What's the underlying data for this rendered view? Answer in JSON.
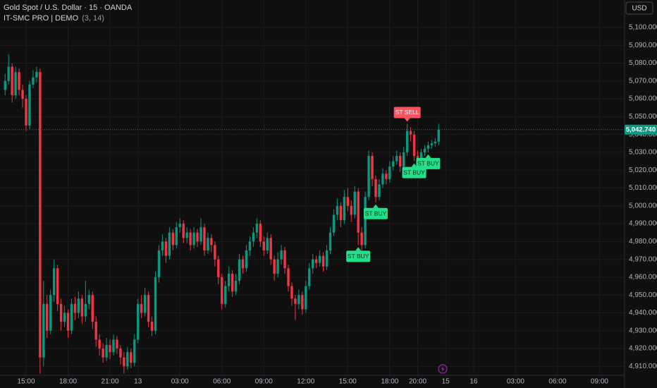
{
  "chart_data": {
    "type": "candlestick",
    "title": "Gold Spot / U.S. Dollar · 15 · OANDA",
    "subtitle": "IT-SMC PRO | DEMO",
    "subtitle_params": "(3, 14)",
    "currency": "USD",
    "up_color": "#089981",
    "down_color": "#f23645",
    "grid": true,
    "categories": [
      null,
      null,
      null,
      null,
      null,
      null,
      "15:00",
      null,
      null,
      null,
      null,
      null,
      null,
      null,
      null,
      null,
      null,
      null,
      "18:00",
      null,
      null,
      null,
      null,
      null,
      null,
      null,
      null,
      null,
      null,
      null,
      "21:00",
      null,
      null,
      null,
      null,
      null,
      null,
      null,
      "13",
      null,
      null,
      null,
      null,
      null,
      null,
      null,
      null,
      null,
      null,
      null,
      "03:00",
      null,
      null,
      null,
      null,
      null,
      null,
      null,
      null,
      null,
      null,
      null,
      "06:00",
      null,
      null,
      null,
      null,
      null,
      null,
      null,
      null,
      null,
      null,
      null,
      "09:00",
      null,
      null,
      null,
      null,
      null,
      null,
      null,
      null,
      null,
      null,
      null,
      "12:00",
      null,
      null,
      null,
      null,
      null,
      null,
      null,
      null,
      null,
      null,
      null,
      "15:00",
      null,
      null,
      null,
      null,
      null,
      null,
      null,
      null,
      null,
      null,
      null,
      "18:00",
      null,
      null,
      null,
      null,
      null,
      null,
      null,
      "20:00",
      null,
      null,
      null,
      null,
      null,
      null,
      null,
      "15",
      null,
      null,
      null,
      null,
      null,
      null,
      null,
      "16",
      null,
      null,
      null,
      null,
      null,
      null,
      null,
      null,
      null,
      null,
      null,
      "03:00",
      null,
      null,
      null,
      null,
      null,
      null,
      null,
      null,
      null,
      null,
      null,
      "06:00",
      null,
      null,
      null,
      null,
      null,
      null,
      null,
      null,
      null,
      null,
      null,
      "09:00",
      null,
      null,
      null,
      null,
      null
    ],
    "open": [
      5065,
      5070,
      5078,
      5062,
      5075,
      5065,
      5060,
      5045,
      5068,
      5072,
      5075,
      4915,
      4945,
      4930,
      4950,
      4965,
      4945,
      4935,
      4940,
      4930,
      4945,
      4940,
      4948,
      4938,
      4945,
      4950,
      4935,
      4925,
      4920,
      4915,
      4922,
      4918,
      4925,
      4920,
      4915,
      4910,
      4918,
      4912,
      4925,
      4945,
      4940,
      4950,
      4935,
      4930,
      4960,
      4975,
      4980,
      4972,
      4985,
      4978,
      4988,
      4990,
      4982,
      4985,
      4978,
      4985,
      4980,
      4988,
      4975,
      4982,
      4978,
      4970,
      4960,
      4945,
      4955,
      4962,
      4952,
      4958,
      4970,
      4965,
      4975,
      4980,
      4985,
      4990,
      4980,
      4975,
      4982,
      4970,
      4962,
      4970,
      4975,
      4965,
      4955,
      4948,
      4945,
      4950,
      4942,
      4955,
      4965,
      4970,
      4968,
      4972,
      4966,
      4975,
      4985,
      4995,
      5000,
      4992,
      5005,
      5000,
      4995,
      5008,
      4985,
      4978,
      5005,
      5028,
      5015,
      5005,
      5012,
      5018,
      5015,
      5022,
      5025,
      5028,
      5022,
      5030,
      5042,
      5040,
      5028,
      5025,
      5030,
      5032,
      5034,
      5035,
      5036,
      null,
      null,
      null,
      null,
      null,
      null,
      null,
      null,
      null,
      null,
      null,
      null,
      null,
      null,
      null,
      null,
      null,
      null,
      null,
      null,
      null,
      null,
      null,
      null,
      null,
      null,
      null,
      null,
      null,
      null,
      null,
      null,
      null,
      null,
      null,
      null,
      null,
      null,
      null,
      null,
      null,
      null,
      null,
      null,
      null,
      null,
      null,
      null,
      null,
      null,
      null
    ],
    "high": [
      5074,
      5085,
      5080,
      5078,
      5077,
      5068,
      5062,
      5070,
      5076,
      5078,
      5077,
      4958,
      4950,
      4953,
      4970,
      4967,
      4948,
      4944,
      4942,
      4948,
      4949,
      4952,
      4950,
      4958,
      4953,
      4952,
      4938,
      4928,
      4923,
      4926,
      4925,
      4928,
      4927,
      4922,
      4918,
      4921,
      4920,
      4928,
      4948,
      4950,
      4954,
      4952,
      4938,
      4963,
      4978,
      4984,
      4982,
      4988,
      4987,
      4991,
      4993,
      4992,
      4988,
      4987,
      4988,
      4987,
      4993,
      4990,
      4985,
      4984,
      4980,
      4972,
      4962,
      4958,
      4966,
      4964,
      4962,
      4973,
      4972,
      4978,
      4983,
      4988,
      4993,
      4992,
      4983,
      4985,
      4984,
      4972,
      4974,
      4978,
      4977,
      4967,
      4957,
      4950,
      4953,
      4952,
      4958,
      4968,
      4973,
      4972,
      4975,
      4974,
      4978,
      4988,
      4998,
      5004,
      5002,
      5009,
      5010,
      5003,
      5011,
      5010,
      4988,
      5008,
      5031,
      5030,
      5017,
      5015,
      5021,
      5020,
      5025,
      5028,
      5031,
      5030,
      5033,
      5046,
      5044,
      5042,
      5031,
      5032,
      5034,
      5036,
      5037,
      5038,
      5046,
      null,
      null,
      null,
      null,
      null,
      null,
      null,
      null,
      null,
      null,
      null,
      null,
      null,
      null,
      null,
      null,
      null,
      null,
      null,
      null,
      null,
      null,
      null,
      null,
      null,
      null,
      null,
      null,
      null,
      null,
      null,
      null,
      null,
      null,
      null,
      null,
      null,
      null,
      null,
      null,
      null,
      null,
      null,
      null,
      null,
      null,
      null,
      null,
      null,
      null,
      null
    ],
    "low": [
      5062,
      5068,
      5058,
      5060,
      5062,
      5055,
      5042,
      5043,
      5066,
      5069,
      4906,
      4910,
      4926,
      4928,
      4946,
      4941,
      4930,
      4932,
      4926,
      4928,
      4936,
      4937,
      4934,
      4935,
      4942,
      4931,
      4921,
      4916,
      4912,
      4913,
      4914,
      4916,
      4917,
      4911,
      4906,
      4908,
      4909,
      4910,
      4923,
      4937,
      4938,
      4932,
      4927,
      4928,
      4957,
      4972,
      4968,
      4970,
      4975,
      4976,
      4985,
      4979,
      4979,
      4975,
      4976,
      4977,
      4978,
      4972,
      4973,
      4974,
      4966,
      4956,
      4942,
      4943,
      4952,
      4949,
      4950,
      4956,
      4962,
      4963,
      4972,
      4977,
      4982,
      4977,
      4972,
      4973,
      4967,
      4958,
      4960,
      4967,
      4962,
      4952,
      4944,
      4936,
      4942,
      4939,
      4940,
      4953,
      4962,
      4965,
      4966,
      4963,
      4964,
      4973,
      4983,
      4992,
      4988,
      4990,
      4997,
      4991,
      4993,
      4978,
      4975,
      4976,
      5003,
      5011,
      5002,
      5003,
      5010,
      5012,
      5013,
      5020,
      5023,
      5019,
      5020,
      5028,
      5036,
      5025,
      5022,
      5023,
      5028,
      5030,
      5032,
      5033,
      5034,
      null,
      null,
      null,
      null,
      null,
      null,
      null,
      null,
      null,
      null,
      null,
      null,
      null,
      null,
      null,
      null,
      null,
      null,
      null,
      null,
      null,
      null,
      null,
      null,
      null,
      null,
      null,
      null,
      null,
      null,
      null,
      null,
      null,
      null,
      null,
      null,
      null,
      null,
      null,
      null,
      null,
      null,
      null,
      null,
      null,
      null,
      null,
      null,
      null,
      null,
      null
    ],
    "close": [
      5070,
      5078,
      5062,
      5075,
      5065,
      5060,
      5045,
      5068,
      5072,
      5075,
      4915,
      4945,
      4930,
      4950,
      4965,
      4945,
      4935,
      4940,
      4930,
      4945,
      4940,
      4948,
      4938,
      4945,
      4950,
      4935,
      4925,
      4920,
      4915,
      4922,
      4918,
      4925,
      4920,
      4915,
      4910,
      4918,
      4912,
      4925,
      4945,
      4940,
      4950,
      4935,
      4930,
      4960,
      4975,
      4980,
      4972,
      4985,
      4978,
      4988,
      4990,
      4982,
      4985,
      4978,
      4985,
      4980,
      4988,
      4975,
      4982,
      4978,
      4970,
      4960,
      4945,
      4955,
      4962,
      4952,
      4958,
      4970,
      4965,
      4975,
      4980,
      4985,
      4990,
      4980,
      4975,
      4982,
      4970,
      4962,
      4970,
      4975,
      4965,
      4955,
      4948,
      4945,
      4950,
      4942,
      4955,
      4965,
      4970,
      4968,
      4972,
      4966,
      4975,
      4985,
      4995,
      5000,
      4992,
      5005,
      5000,
      4995,
      5008,
      4985,
      4978,
      5005,
      5028,
      5015,
      5005,
      5012,
      5018,
      5015,
      5022,
      5025,
      5028,
      5022,
      5030,
      5042,
      5040,
      5028,
      5025,
      5030,
      5032,
      5034,
      5035,
      5036,
      5042.74,
      null,
      null,
      null,
      null,
      null,
      null,
      null,
      null,
      null,
      null,
      null,
      null,
      null,
      null,
      null,
      null,
      null,
      null,
      null,
      null,
      null,
      null,
      null,
      null,
      null,
      null,
      null,
      null,
      null,
      null,
      null,
      null,
      null,
      null,
      null,
      null,
      null,
      null,
      null,
      null,
      null,
      null,
      null,
      null,
      null,
      null,
      null,
      null,
      null,
      null,
      null
    ],
    "last_price": {
      "value": 5042.74,
      "label": "5,042.740"
    },
    "annotations": [
      "ST SELL",
      "ST BUY",
      "ST BUY",
      "ST BUY",
      "ST BUY"
    ],
    "ylim": [
      4905,
      5115.4
    ],
    "yticks": [
      {
        "value": 4910,
        "label": "4,910.000"
      },
      {
        "value": 4920,
        "label": "4,920.000"
      },
      {
        "value": 4930,
        "label": "4,930.000"
      },
      {
        "value": 4940,
        "label": "4,940.000"
      },
      {
        "value": 4950,
        "label": "4,950.000"
      },
      {
        "value": 4960,
        "label": "4,960.000"
      },
      {
        "value": 4970,
        "label": "4,970.000"
      },
      {
        "value": 4980,
        "label": "4,980.000"
      },
      {
        "value": 4990,
        "label": "4,990.000"
      },
      {
        "value": 5000,
        "label": "5,000.000"
      },
      {
        "value": 5010,
        "label": "5,010.000"
      },
      {
        "value": 5020,
        "label": "5,020.000"
      },
      {
        "value": 5030,
        "label": "5,030.000"
      },
      {
        "value": 5040,
        "label": "5,040.000"
      },
      {
        "value": 5050,
        "label": "5,050.000"
      },
      {
        "value": 5060,
        "label": "5,060.000"
      },
      {
        "value": 5070,
        "label": "5,070.000"
      },
      {
        "value": 5080,
        "label": "5,080.000"
      },
      {
        "value": 5090,
        "label": "5,090.000"
      },
      {
        "value": 5100,
        "label": "5,100.000"
      }
    ]
  }
}
